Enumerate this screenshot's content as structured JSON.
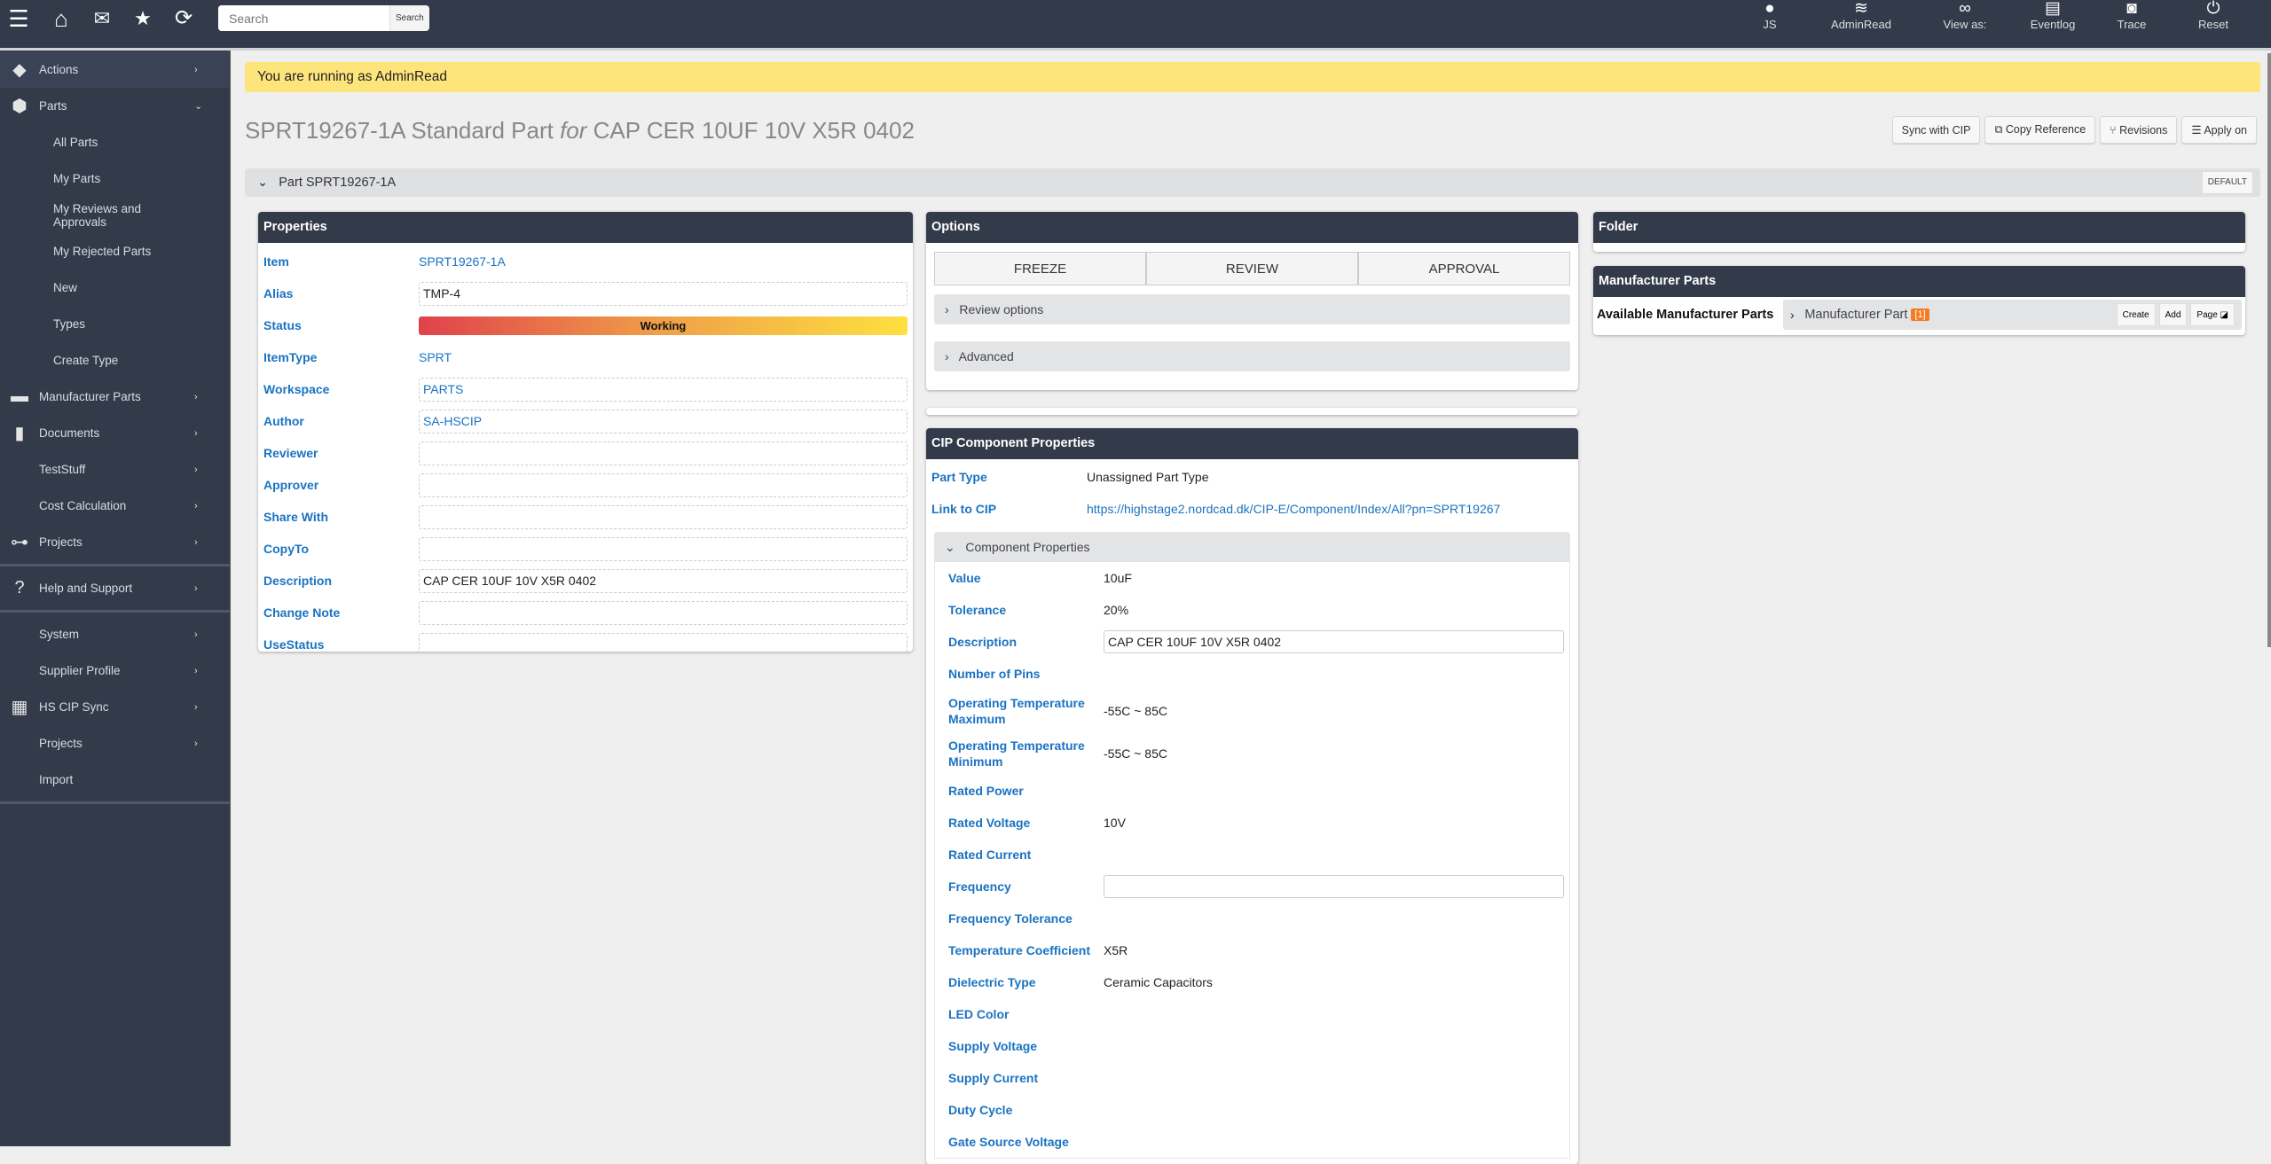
{
  "topbar": {
    "search_placeholder": "Search",
    "search_button": "Search",
    "left_icons": [
      "menu-icon",
      "home-icon",
      "mail-icon",
      "star-icon",
      "refresh-icon"
    ],
    "right": [
      {
        "icon": "user-icon",
        "label": "JS"
      },
      {
        "icon": "layers-icon",
        "label": "AdminRead"
      },
      {
        "icon": "mask-icon",
        "label": "View as:"
      },
      {
        "icon": "clipboard-icon",
        "label": "Eventlog"
      },
      {
        "icon": "gauge-icon",
        "label": "Trace"
      },
      {
        "icon": "power-icon",
        "label": "Reset"
      }
    ]
  },
  "sidebar": {
    "items": [
      {
        "label": "Actions",
        "icon": "diamond-icon",
        "chevron": "›"
      },
      {
        "label": "Parts",
        "icon": "cube-icon",
        "chevron": "⌄"
      },
      {
        "label": "All Parts"
      },
      {
        "label": "My Parts"
      },
      {
        "label": "My Reviews and Approvals"
      },
      {
        "label": "My Rejected Parts"
      },
      {
        "label": "New"
      },
      {
        "label": "Types"
      },
      {
        "label": "Create Type"
      },
      {
        "label": "Manufacturer Parts",
        "icon": "box-icon",
        "chevron": "›"
      },
      {
        "label": "Documents",
        "icon": "file-icon",
        "chevron": "›"
      },
      {
        "label": "TestStuff",
        "chevron": "›"
      },
      {
        "label": "Cost Calculation",
        "chevron": "›"
      },
      {
        "label": "Projects",
        "icon": "sitemap-icon",
        "chevron": "›"
      },
      {
        "label": "Help and Support",
        "icon": "question-icon",
        "chevron": "›"
      },
      {
        "label": "System",
        "chevron": "›"
      },
      {
        "label": "Supplier Profile",
        "chevron": "›"
      },
      {
        "label": "HS CIP Sync",
        "icon": "chip-icon",
        "chevron": "›"
      },
      {
        "label": "Projects",
        "chevron": "›"
      },
      {
        "label": "Import"
      }
    ]
  },
  "banner": "You are running as AdminRead",
  "title": {
    "main": "SPRT19267-1A Standard Part ",
    "for": "for",
    "rest": " CAP CER 10UF 10V X5R 0402"
  },
  "actions": [
    "Sync with CIP",
    "Copy Reference",
    "Revisions",
    "Apply on"
  ],
  "part_bar": {
    "label": "Part SPRT19267-1A",
    "badge": "DEFAULT"
  },
  "properties": {
    "title": "Properties",
    "rows": [
      {
        "label": "Item",
        "value": "SPRT19267-1A",
        "kind": "link"
      },
      {
        "label": "Alias",
        "value": "TMP-4",
        "kind": "box"
      },
      {
        "label": "Status",
        "value": "Working",
        "kind": "status"
      },
      {
        "label": "ItemType",
        "value": "SPRT",
        "kind": "link"
      },
      {
        "label": "Workspace",
        "value": "PARTS",
        "kind": "boxlink"
      },
      {
        "label": "Author",
        "value": "SA-HSCIP",
        "kind": "boxlink"
      },
      {
        "label": "Reviewer",
        "value": "",
        "kind": "box"
      },
      {
        "label": "Approver",
        "value": "",
        "kind": "box"
      },
      {
        "label": "Share With",
        "value": "",
        "kind": "box"
      },
      {
        "label": "CopyTo",
        "value": "",
        "kind": "box"
      },
      {
        "label": "Description",
        "value": "CAP CER 10UF 10V X5R 0402",
        "kind": "box"
      },
      {
        "label": "Change Note",
        "value": "",
        "kind": "box"
      },
      {
        "label": "UseStatus",
        "value": "",
        "kind": "box"
      }
    ]
  },
  "options": {
    "title": "Options",
    "buttons": [
      "FREEZE",
      "REVIEW",
      "APPROVAL"
    ],
    "sections": [
      "Review options",
      "Advanced"
    ]
  },
  "cip": {
    "title": "CIP Component Properties",
    "part_type_label": "Part Type",
    "part_type": "Unassigned Part Type",
    "link_label": "Link to CIP",
    "link": "https://highstage2.nordcad.dk/CIP-E/Component/Index/All?pn=SPRT19267",
    "section": "Component Properties",
    "rows": [
      {
        "label": "Value",
        "value": "10uF"
      },
      {
        "label": "Tolerance",
        "value": "20%"
      },
      {
        "label": "Description",
        "value": "CAP CER 10UF 10V X5R 0402",
        "input": true
      },
      {
        "label": "Number of Pins",
        "value": ""
      },
      {
        "label": "Operating Temperature Maximum",
        "value": "-55C ~ 85C"
      },
      {
        "label": "Operating Temperature Minimum",
        "value": "-55C ~ 85C"
      },
      {
        "label": "Rated Power",
        "value": ""
      },
      {
        "label": "Rated Voltage",
        "value": "10V"
      },
      {
        "label": "Rated Current",
        "value": ""
      },
      {
        "label": "Frequency",
        "value": "",
        "input": true
      },
      {
        "label": "Frequency Tolerance",
        "value": ""
      },
      {
        "label": "Temperature Coefficient",
        "value": "X5R"
      },
      {
        "label": "Dielectric Type",
        "value": "Ceramic Capacitors"
      },
      {
        "label": "LED Color",
        "value": ""
      },
      {
        "label": "Supply Voltage",
        "value": ""
      },
      {
        "label": "Supply Current",
        "value": ""
      },
      {
        "label": "Duty Cycle",
        "value": ""
      },
      {
        "label": "Gate Source Voltage",
        "value": ""
      }
    ]
  },
  "folder": {
    "title": "Folder"
  },
  "manufacturer_parts": {
    "title": "Manufacturer Parts",
    "label": "Available Manufacturer Parts",
    "section": "Manufacturer Part",
    "count": "[1]",
    "buttons": [
      "Create",
      "Add",
      "Page"
    ]
  },
  "colors": {
    "header": "#333b4b",
    "banner": "#fde57b",
    "link": "#1a73c2",
    "badge": "#f47c20"
  }
}
